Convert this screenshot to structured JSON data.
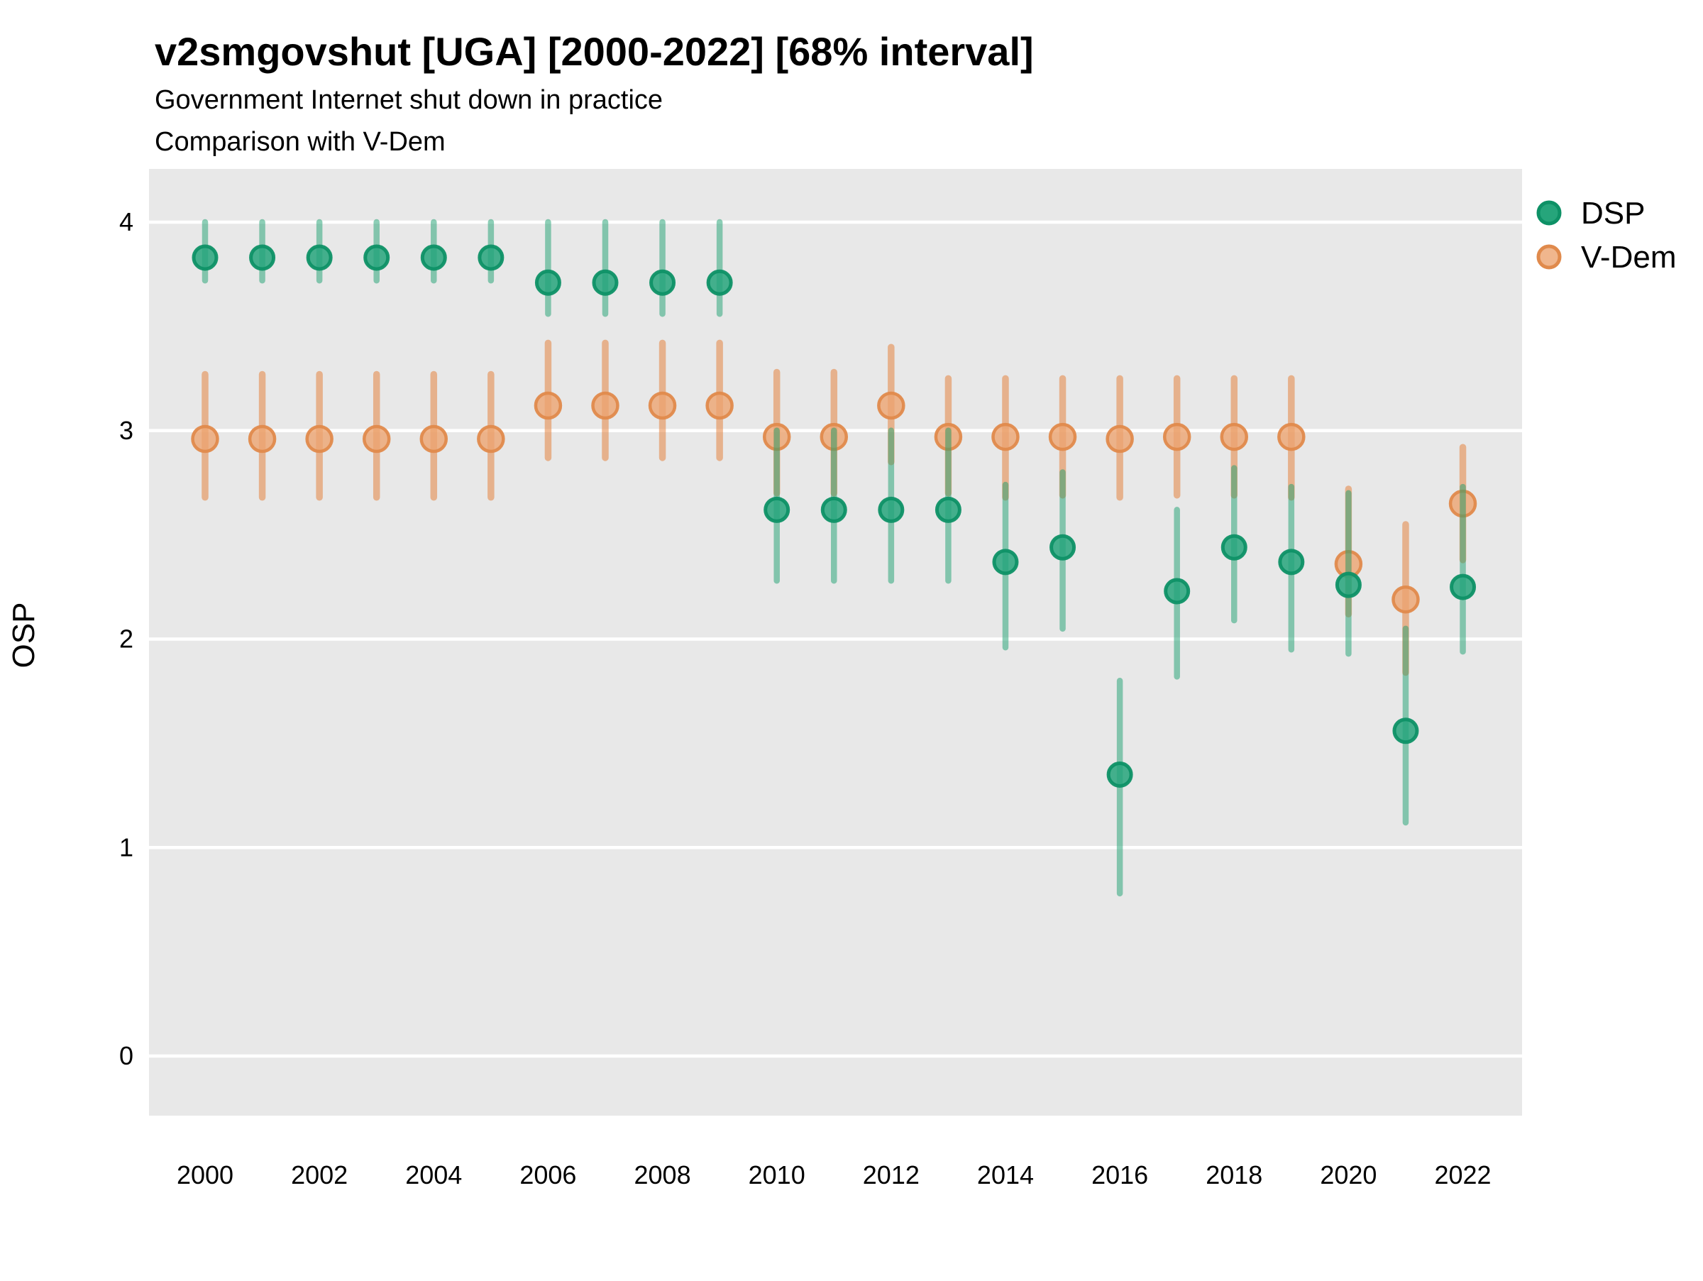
{
  "header": {
    "title": "v2smgovshut [UGA] [2000-2022] [68% interval]",
    "subtitle1": "Government Internet shut down in practice",
    "subtitle2": "Comparison with V-Dem"
  },
  "axes": {
    "ylabel": "OSP",
    "y_ticks": [
      "0",
      "1",
      "2",
      "3",
      "4"
    ],
    "x_tick_labels": [
      "2000",
      "2002",
      "2004",
      "2006",
      "2008",
      "2010",
      "2012",
      "2014",
      "2016",
      "2018",
      "2020",
      "2022"
    ]
  },
  "legend": {
    "items": [
      {
        "label": "DSP"
      },
      {
        "label": "V-Dem"
      }
    ]
  },
  "colors": {
    "plot_bg": "#E8E8E8",
    "grid": "#FFFFFF",
    "text": "#000000",
    "dsp_point_fill": "#26A57B",
    "dsp_point_stroke": "#0E9166",
    "dsp_bar": "rgba(28,160,112,0.50)",
    "vdem_point_fill": "#ECA470",
    "vdem_point_stroke": "#E08A4C",
    "vdem_bar": "rgba(228,126,56,0.52)"
  },
  "chart_data": {
    "type": "scatter",
    "title": "v2smgovshut [UGA] [2000-2022] [68% interval]",
    "xlabel": "",
    "ylabel": "OSP",
    "interval": "68%",
    "grid": "horizontal-only",
    "legend_position": "right",
    "ylim": [
      -0.29,
      4.26
    ],
    "y_ticks": [
      0,
      1,
      2,
      3,
      4
    ],
    "x": [
      2000,
      2001,
      2002,
      2003,
      2004,
      2005,
      2006,
      2007,
      2008,
      2009,
      2010,
      2011,
      2012,
      2013,
      2014,
      2015,
      2016,
      2017,
      2018,
      2019,
      2020,
      2021,
      2022
    ],
    "x_tick_years": [
      2000,
      2002,
      2004,
      2006,
      2008,
      2010,
      2012,
      2014,
      2016,
      2018,
      2020,
      2022
    ],
    "series": [
      {
        "name": "DSP",
        "values": [
          3.83,
          3.83,
          3.83,
          3.83,
          3.83,
          3.83,
          3.71,
          3.71,
          3.71,
          3.71,
          2.62,
          2.62,
          2.62,
          2.62,
          2.37,
          2.44,
          1.35,
          2.23,
          2.44,
          2.37,
          2.26,
          1.56,
          2.25
        ],
        "lower": [
          3.72,
          3.72,
          3.72,
          3.72,
          3.72,
          3.72,
          3.56,
          3.56,
          3.56,
          3.56,
          2.28,
          2.28,
          2.28,
          2.28,
          1.96,
          2.05,
          0.78,
          1.82,
          2.09,
          1.95,
          1.93,
          1.12,
          1.94
        ],
        "upper": [
          4.0,
          4.0,
          4.0,
          4.0,
          4.0,
          4.0,
          4.0,
          4.0,
          4.0,
          4.0,
          3.0,
          3.0,
          3.0,
          3.0,
          2.74,
          2.8,
          1.8,
          2.62,
          2.82,
          2.73,
          2.7,
          2.05,
          2.73
        ]
      },
      {
        "name": "V-Dem",
        "values": [
          2.96,
          2.96,
          2.96,
          2.96,
          2.96,
          2.96,
          3.12,
          3.12,
          3.12,
          3.12,
          2.97,
          2.97,
          3.12,
          2.97,
          2.97,
          2.97,
          2.96,
          2.97,
          2.97,
          2.97,
          2.36,
          2.19,
          2.65
        ],
        "lower": [
          2.68,
          2.68,
          2.68,
          2.68,
          2.68,
          2.68,
          2.87,
          2.87,
          2.87,
          2.87,
          2.7,
          2.7,
          2.85,
          2.7,
          2.68,
          2.69,
          2.68,
          2.69,
          2.69,
          2.68,
          2.12,
          1.84,
          2.38
        ],
        "upper": [
          3.27,
          3.27,
          3.27,
          3.27,
          3.27,
          3.27,
          3.42,
          3.42,
          3.42,
          3.42,
          3.28,
          3.28,
          3.4,
          3.25,
          3.25,
          3.25,
          3.25,
          3.25,
          3.25,
          3.25,
          2.72,
          2.55,
          2.92
        ]
      }
    ]
  }
}
